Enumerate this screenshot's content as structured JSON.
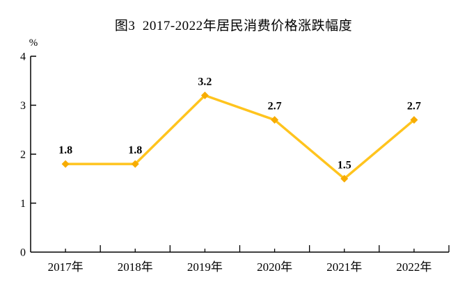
{
  "chart_data": {
    "type": "line",
    "title": "图3  2017-2022年居民消费价格涨跌幅度",
    "unit_label": "%",
    "categories": [
      "2017年",
      "2018年",
      "2019年",
      "2020年",
      "2021年",
      "2022年"
    ],
    "values": [
      1.8,
      1.8,
      3.2,
      2.7,
      1.5,
      2.7
    ],
    "data_labels": [
      "1.8",
      "1.8",
      "3.2",
      "2.7",
      "1.5",
      "2.7"
    ],
    "ylabel": "",
    "xlabel": "",
    "ylim": [
      0,
      4
    ],
    "yticks": [
      0,
      1,
      2,
      3,
      4
    ],
    "ytick_labels": [
      "0",
      "1",
      "2",
      "3",
      "4"
    ],
    "grid": false,
    "legend": "none",
    "marker": "diamond",
    "colors": {
      "line": "#FFC41E",
      "marker": "#F7AC00",
      "axis": "#000000",
      "text": "#000000"
    }
  }
}
